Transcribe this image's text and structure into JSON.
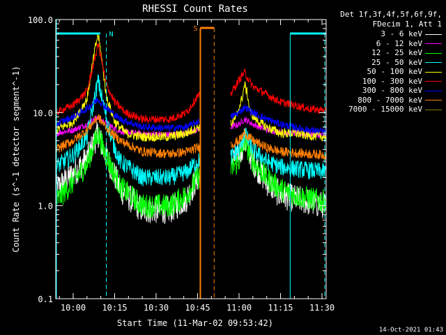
{
  "chart_data": {
    "type": "line",
    "title": "RHESSI Count Rates",
    "xlabel": "Start Time (11-Mar-02 09:53:42)",
    "ylabel": "Count Rate (s^-1 detector segment^-1)",
    "yscale": "log",
    "ylim": [
      0.1,
      100.0
    ],
    "xlim_minutes_from_0945": [
      8.7,
      106.5
    ],
    "x_tick_labels": [
      "10:00",
      "10:15",
      "10:30",
      "10:45",
      "11:00",
      "11:15",
      "11:30"
    ],
    "x_ticks_minutes_from_0945": [
      15,
      30,
      45,
      60,
      75,
      90,
      105
    ],
    "y_tick_labels": [
      "0.1",
      "1.0",
      "10.0",
      "100.0"
    ],
    "y_ticks": [
      0.1,
      1.0,
      10.0,
      100.0
    ],
    "legend_header": [
      "Det 1f,3f,4f,5f,6f,9f,",
      "FDecim 1, Att 1"
    ],
    "data_gap_minutes_from_0945": [
      61.0,
      72.0
    ],
    "series": [
      {
        "name": "3 - 6 keV",
        "color": "#ffffff",
        "x": [
          8.7,
          15,
          20,
          24,
          26,
          29,
          32,
          40,
          50,
          56,
          60,
          72,
          75,
          77,
          80,
          85,
          90,
          95,
          100,
          106.5
        ],
        "y": [
          1.5,
          2.2,
          3.2,
          6.0,
          4.0,
          2.5,
          1.5,
          0.9,
          0.9,
          1.2,
          2.0,
          3.0,
          3.5,
          5.0,
          3.0,
          1.8,
          1.3,
          1.2,
          1.1,
          1.0
        ]
      },
      {
        "name": "6 - 12 keV",
        "color": "#ff00ff",
        "x": [
          8.7,
          15,
          20,
          24,
          26,
          29,
          32,
          40,
          50,
          56,
          60,
          72,
          75,
          77,
          80,
          85,
          90,
          95,
          100,
          106.5
        ],
        "y": [
          6.0,
          6.5,
          7.5,
          9.0,
          8.0,
          7.0,
          6.3,
          5.9,
          5.8,
          6.0,
          6.5,
          7.0,
          7.5,
          8.5,
          7.5,
          6.5,
          6.2,
          6.0,
          5.8,
          5.7
        ]
      },
      {
        "name": "12 - 25 keV",
        "color": "#00ff00",
        "x": [
          8.7,
          15,
          20,
          24,
          26,
          29,
          32,
          40,
          50,
          56,
          60,
          72,
          75,
          77,
          80,
          85,
          90,
          95,
          100,
          106.5
        ],
        "y": [
          1.1,
          1.8,
          2.8,
          6.0,
          4.0,
          2.5,
          1.6,
          1.0,
          1.0,
          1.3,
          2.0,
          2.5,
          3.0,
          5.0,
          3.0,
          2.0,
          1.5,
          1.3,
          1.2,
          1.1
        ]
      },
      {
        "name": "25 - 50 keV",
        "color": "#00ffff",
        "x": [
          8.7,
          15,
          20,
          24,
          26,
          29,
          32,
          40,
          50,
          56,
          60,
          72,
          75,
          77,
          80,
          85,
          90,
          95,
          100,
          106.5
        ],
        "y": [
          2.6,
          3.5,
          5.5,
          22.0,
          12.0,
          5.0,
          3.0,
          2.0,
          2.0,
          2.3,
          3.0,
          3.3,
          4.0,
          6.0,
          4.0,
          3.0,
          2.6,
          2.5,
          2.4,
          2.3
        ]
      },
      {
        "name": "50 - 100 keV",
        "color": "#ffff00",
        "x": [
          8.7,
          15,
          20,
          23,
          24,
          25,
          27,
          30,
          34,
          40,
          50,
          56,
          60,
          72,
          74,
          76,
          77,
          78,
          79,
          82,
          85,
          90,
          95,
          100,
          106.5
        ],
        "y": [
          6.5,
          8.0,
          14.0,
          50.0,
          70.0,
          45.0,
          15.0,
          8.0,
          6.0,
          5.5,
          5.5,
          6.0,
          7.0,
          7.5,
          9.0,
          14.0,
          20.0,
          16.0,
          10.0,
          8.0,
          7.0,
          6.0,
          6.0,
          5.7,
          5.5
        ]
      },
      {
        "name": "100 - 300 keV",
        "color": "#ff0000",
        "x": [
          8.7,
          15,
          20,
          23,
          24,
          25,
          27,
          30,
          34,
          40,
          50,
          56,
          60,
          72,
          74,
          76,
          77,
          78,
          80,
          83,
          86,
          90,
          95,
          100,
          106.5
        ],
        "y": [
          10.0,
          12.0,
          17.0,
          40.0,
          55.0,
          40.0,
          20.0,
          13.0,
          10.0,
          8.5,
          8.5,
          10.0,
          15.0,
          16.0,
          20.0,
          25.0,
          27.0,
          24.0,
          19.0,
          17.0,
          15.0,
          13.0,
          12.0,
          11.0,
          10.5
        ]
      },
      {
        "name": "300 - 800 keV",
        "color": "#0000ff",
        "x": [
          8.7,
          15,
          20,
          24,
          26,
          29,
          32,
          40,
          50,
          56,
          60,
          72,
          75,
          77,
          80,
          85,
          90,
          95,
          100,
          106.5
        ],
        "y": [
          7.5,
          9.0,
          11.0,
          14.0,
          12.0,
          10.0,
          8.5,
          7.0,
          6.8,
          7.0,
          8.0,
          9.0,
          10.0,
          11.5,
          10.0,
          8.5,
          7.5,
          7.0,
          6.5,
          6.2
        ]
      },
      {
        "name": "800 - 7000 keV",
        "color": "#ff8000",
        "x": [
          8.7,
          15,
          20,
          24,
          26,
          29,
          32,
          40,
          50,
          56,
          60,
          72,
          75,
          77,
          80,
          85,
          90,
          95,
          100,
          106.5
        ],
        "y": [
          4.0,
          5.0,
          6.5,
          9.0,
          7.5,
          6.0,
          5.0,
          3.8,
          3.6,
          3.8,
          4.2,
          4.5,
          5.0,
          6.0,
          5.0,
          4.2,
          3.8,
          3.7,
          3.6,
          3.5
        ]
      },
      {
        "name": "7000 - 15000 keV",
        "color": "#808000",
        "x": [
          8.7,
          20,
          40,
          60
        ],
        "y": [
          0.12,
          0.12,
          0.12,
          0.12
        ]
      }
    ],
    "annotations": [
      {
        "text": "N",
        "color": "#00ffff"
      },
      {
        "text": "S",
        "color": "#ff8000"
      }
    ]
  },
  "footer": {
    "timestamp": "14-Oct-2021 01:43"
  }
}
